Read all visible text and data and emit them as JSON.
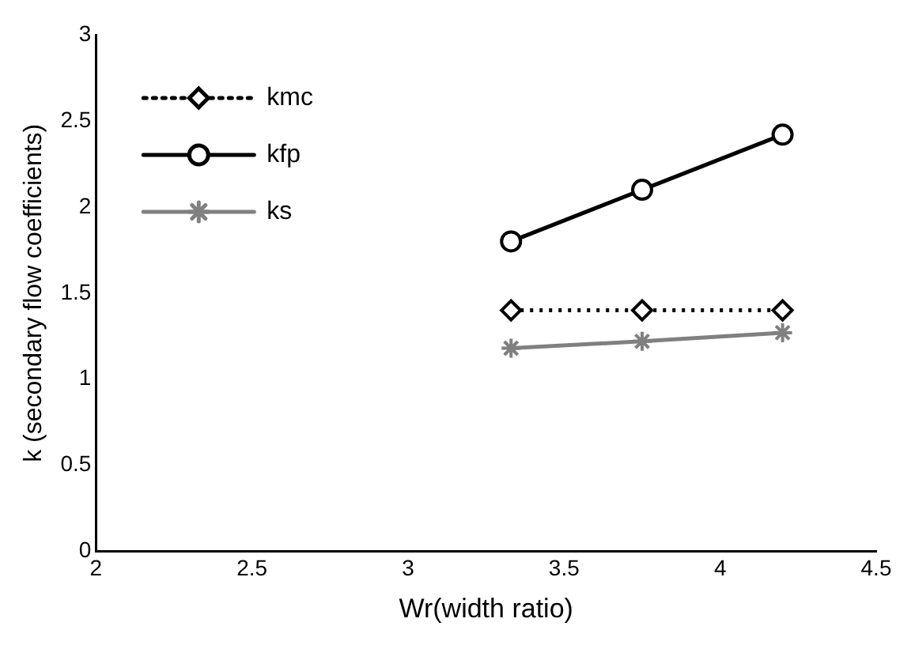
{
  "chart_data": {
    "type": "line",
    "xlabel": "Wr(width ratio)",
    "ylabel": "k (secondary flow coefficients)",
    "x": [
      3.33,
      3.75,
      4.2
    ],
    "xlim": [
      2,
      4.5
    ],
    "xticks": [
      2,
      2.5,
      3,
      3.5,
      4,
      4.5
    ],
    "ylim": [
      0,
      3
    ],
    "yticks": [
      0,
      0.5,
      1,
      1.5,
      2,
      2.5,
      3
    ],
    "grid": false,
    "legend": "top left",
    "series": [
      {
        "name": "kmc",
        "color": "#000000",
        "values": [
          1.4,
          1.4,
          1.4
        ],
        "marker": "diamond",
        "line_style": "dotted"
      },
      {
        "name": "kfp",
        "color": "#000000",
        "values": [
          1.8,
          2.1,
          2.42
        ],
        "marker": "circle",
        "line_style": "solid"
      },
      {
        "name": "ks",
        "color": "#808080",
        "values": [
          1.18,
          1.22,
          1.27
        ],
        "marker": "cross",
        "line_style": "solid"
      }
    ]
  }
}
